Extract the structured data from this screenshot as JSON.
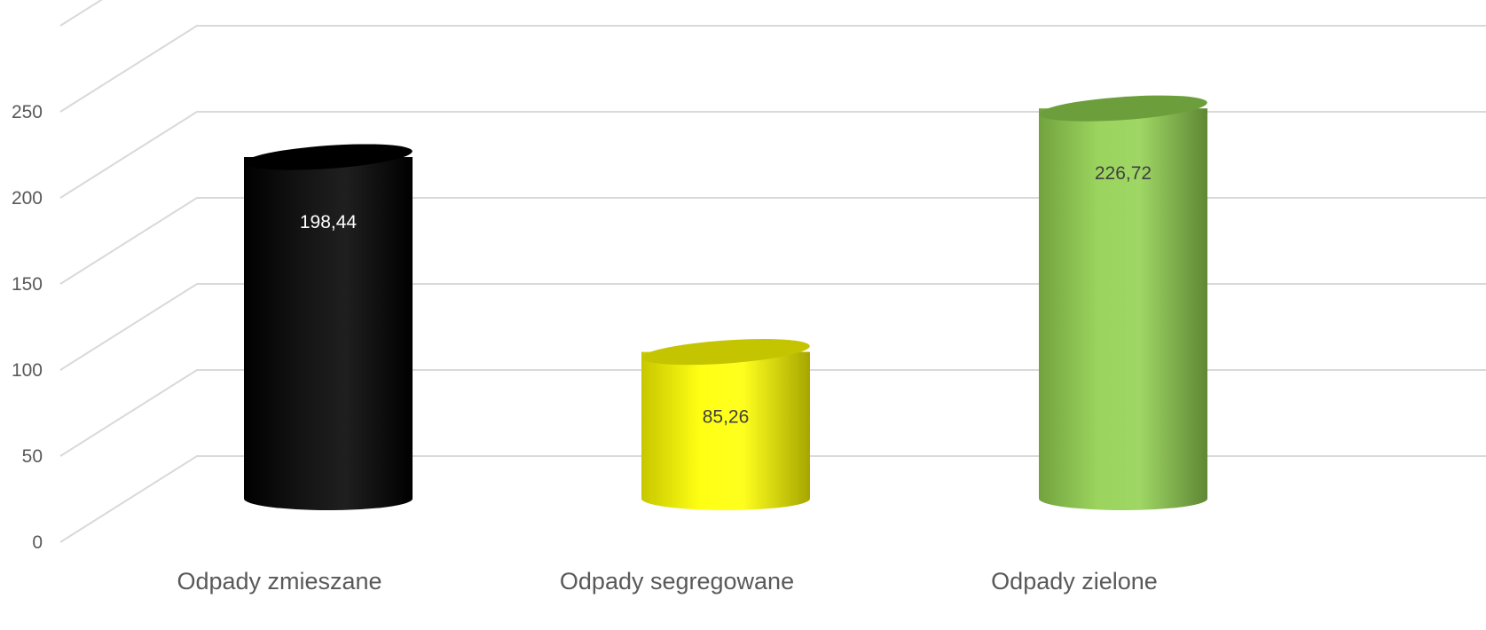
{
  "chart_data": {
    "type": "bar",
    "style": "3d-cylinder",
    "categories": [
      "Odpady zmieszane",
      "Odpady segregowane",
      "Odpady zielone"
    ],
    "values": [
      198.44,
      85.26,
      226.72
    ],
    "data_labels": [
      "198,44",
      "85,26",
      "226,72"
    ],
    "ylim": [
      0,
      300
    ],
    "yticks": [
      0,
      50,
      100,
      150,
      200,
      250
    ],
    "ytick_labels": [
      "0",
      "50",
      "100",
      "150",
      "200",
      "250"
    ],
    "grid": true,
    "legend": "none",
    "title": "",
    "xlabel": "",
    "ylabel": "",
    "colors": {
      "bar_fills": [
        "#000000",
        "#ffff00",
        "#92d050"
      ],
      "bar_tops": [
        "#000000",
        "#c4c400",
        "#6c9e3b"
      ],
      "data_label_colors": [
        "#ffffff",
        "#404040",
        "#404040"
      ],
      "grid": "#d9d9d9",
      "axis_text": "#595959"
    }
  }
}
